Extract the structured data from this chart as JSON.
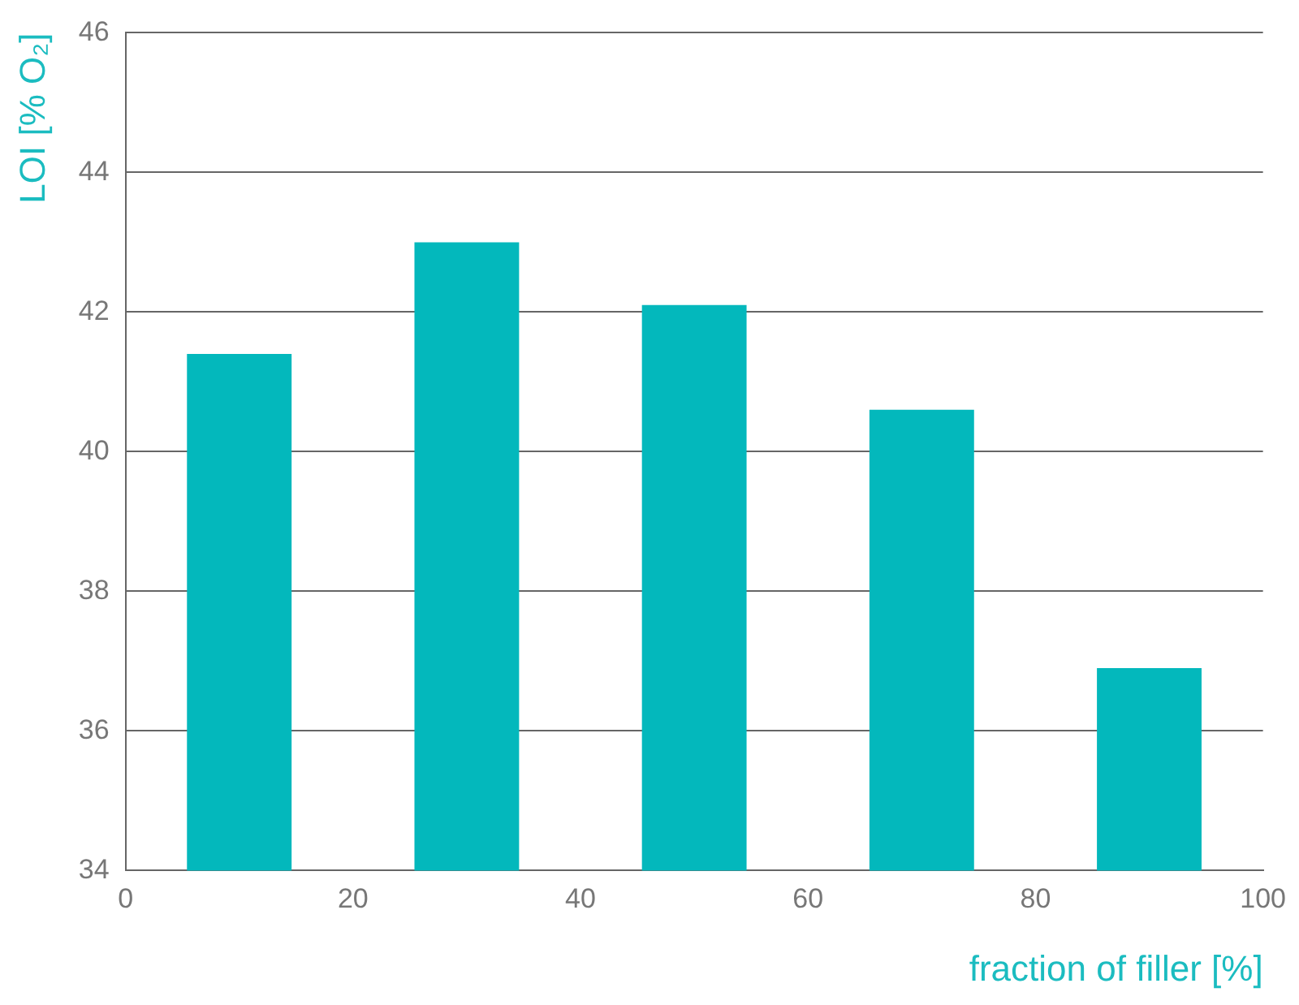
{
  "chart_data": {
    "type": "bar",
    "xlabel": "fraction of filler [%]",
    "ylabel": "LOI [% O₂]",
    "x": [
      10,
      30,
      50,
      70,
      90
    ],
    "values": [
      41.4,
      43.0,
      42.1,
      40.6,
      36.9
    ],
    "color": "#03b8bc",
    "xlim": [
      0,
      100
    ],
    "xticks": [
      0,
      20,
      40,
      60,
      80,
      100
    ],
    "ylim": [
      34,
      46
    ],
    "yticks": [
      34,
      36,
      38,
      40,
      42,
      44,
      46
    ],
    "grid": "y"
  }
}
